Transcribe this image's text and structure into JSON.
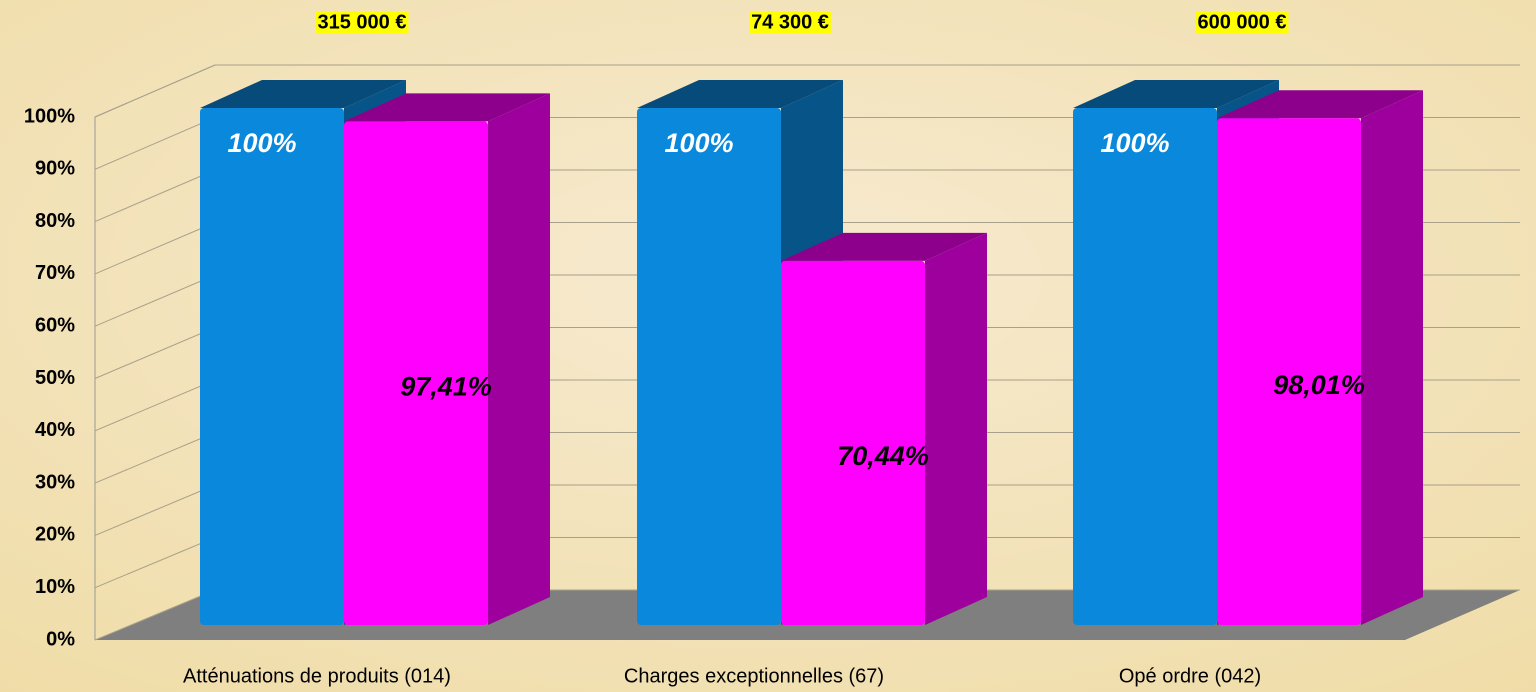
{
  "chart_data": {
    "type": "bar3d",
    "categories": [
      "Atténuations de produits (014)",
      "Charges exceptionnelles (67)",
      "Opé ordre (042)"
    ],
    "annotations": [
      "315 000 €",
      "74 300 €",
      "600 000 €"
    ],
    "series": [
      {
        "color": "#0a88dc",
        "values": [
          100,
          100,
          100
        ],
        "value_labels": [
          "100%",
          "100%",
          "100%"
        ],
        "label_color": "#ffffff"
      },
      {
        "color": "#ff00ff",
        "values": [
          97.41,
          70.44,
          98.01
        ],
        "value_labels": [
          "97,41%",
          "70,44%",
          "98,01%"
        ],
        "label_color": "#000000"
      }
    ],
    "ylim": [
      0,
      100
    ],
    "yticks": [
      {
        "value": 0,
        "label": "0%"
      },
      {
        "value": 10,
        "label": "10%"
      },
      {
        "value": 20,
        "label": "20%"
      },
      {
        "value": 30,
        "label": "30%"
      },
      {
        "value": 40,
        "label": "40%"
      },
      {
        "value": 50,
        "label": "50%"
      },
      {
        "value": 60,
        "label": "60%"
      },
      {
        "value": 70,
        "label": "70%"
      },
      {
        "value": 80,
        "label": "80%"
      },
      {
        "value": 90,
        "label": "90%"
      },
      {
        "value": 100,
        "label": "100%"
      }
    ],
    "grid": true
  }
}
